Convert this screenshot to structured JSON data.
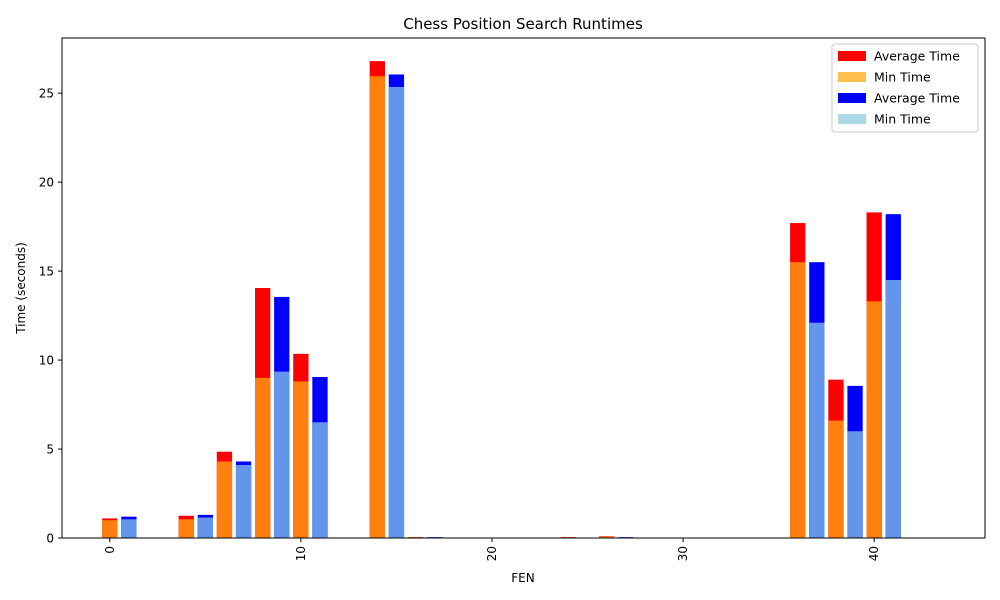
{
  "chart_data": {
    "type": "bar",
    "title": "Chess Position Search Runtimes",
    "xlabel": "FEN",
    "ylabel": "Time (seconds)",
    "xlim": [
      -2.5,
      45.8
    ],
    "ylim": [
      0,
      28.1
    ],
    "x_ticks": [
      0,
      10,
      20,
      30,
      40
    ],
    "y_ticks": [
      0,
      5,
      10,
      15,
      20,
      25
    ],
    "grid": false,
    "legend_position": "top-right",
    "series": [
      {
        "name": "Average Time",
        "color": "#ff0000",
        "x": [
          0,
          4,
          6,
          8,
          10,
          14,
          16,
          24,
          26,
          36,
          38,
          40
        ],
        "values": [
          1.1,
          1.25,
          4.85,
          14.05,
          10.35,
          26.8,
          0.05,
          0.05,
          0.1,
          17.7,
          8.9,
          18.3
        ]
      },
      {
        "name": "Min Time",
        "color": "#ff7f0e",
        "legend_color": "#ffc04d",
        "x": [
          0,
          4,
          6,
          8,
          10,
          14,
          16,
          24,
          26,
          36,
          38,
          40
        ],
        "values": [
          1.0,
          1.05,
          4.3,
          9.0,
          8.8,
          25.95,
          0.04,
          0.04,
          0.08,
          15.5,
          6.6,
          13.3
        ]
      },
      {
        "name": "Average Time",
        "color": "#0000ff",
        "x": [
          1,
          5,
          7,
          9,
          11,
          15,
          17,
          27,
          37,
          39,
          41
        ],
        "values": [
          1.2,
          1.3,
          4.3,
          13.55,
          9.05,
          26.05,
          0.05,
          0.05,
          15.5,
          8.55,
          18.2
        ]
      },
      {
        "name": "Min Time",
        "color": "#6495ed",
        "legend_color": "#add8e6",
        "x": [
          1,
          5,
          7,
          9,
          11,
          15,
          17,
          27,
          37,
          39,
          41
        ],
        "values": [
          1.05,
          1.15,
          4.1,
          9.35,
          6.5,
          25.35,
          0.04,
          0.04,
          12.1,
          6.0,
          14.5
        ]
      }
    ]
  }
}
